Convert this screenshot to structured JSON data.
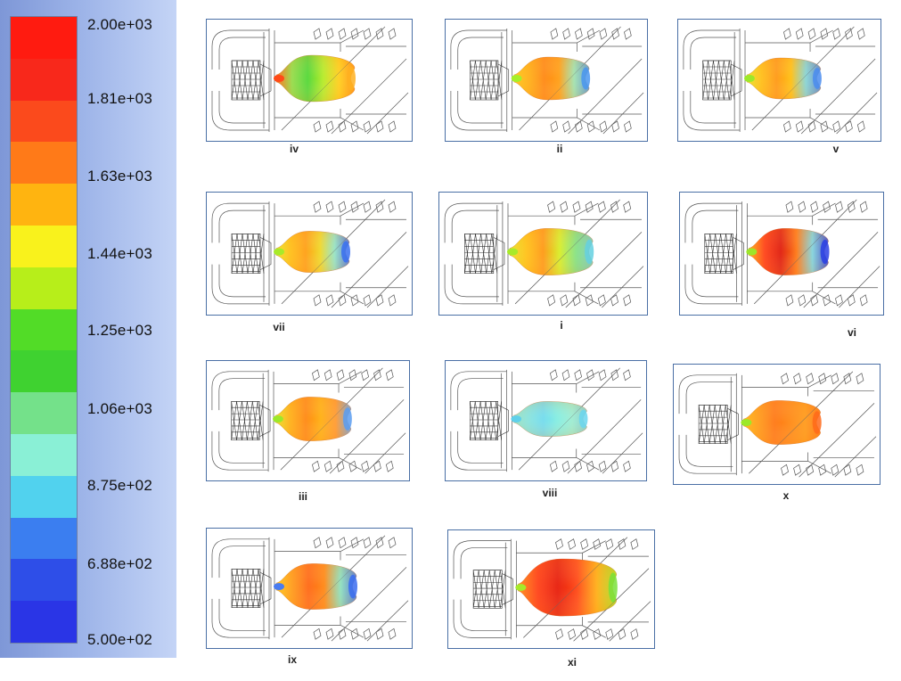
{
  "legend": {
    "tick_labels": [
      "2.00e+03",
      "1.81e+03",
      "1.63e+03",
      "1.44e+03",
      "1.25e+03",
      "1.06e+03",
      "8.75e+02",
      "6.88e+02",
      "5.00e+02"
    ],
    "band_colors": [
      "#ff1b10",
      "#f8281b",
      "#fb4a1c",
      "#ff7a18",
      "#ffb410",
      "#f9f21c",
      "#b7ee1a",
      "#52dc27",
      "#3fd230",
      "#74e18a",
      "#8af0d6",
      "#51d2ee",
      "#3b7ef0",
      "#2e4ee8",
      "#2a35e6"
    ]
  },
  "panels": [
    {
      "id": "iv",
      "label": "iv",
      "plume": "iv"
    },
    {
      "id": "ii",
      "label": "ii",
      "plume": "ii"
    },
    {
      "id": "v",
      "label": "v",
      "plume": "v"
    },
    {
      "id": "vii",
      "label": "vii",
      "plume": "vii"
    },
    {
      "id": "i",
      "label": "i",
      "plume": "i"
    },
    {
      "id": "vi",
      "label": "vi",
      "plume": "vi"
    },
    {
      "id": "iii",
      "label": "iii",
      "plume": "iii"
    },
    {
      "id": "viii",
      "label": "viii",
      "plume": "viii"
    },
    {
      "id": "x",
      "label": "x",
      "plume": "x"
    },
    {
      "id": "ix",
      "label": "ix",
      "plume": "ix"
    },
    {
      "id": "xi",
      "label": "xi",
      "plume": "xi"
    }
  ]
}
